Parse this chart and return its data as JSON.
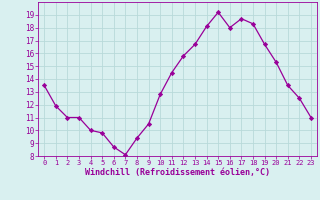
{
  "hours": [
    0,
    1,
    2,
    3,
    4,
    5,
    6,
    7,
    8,
    9,
    10,
    11,
    12,
    13,
    14,
    15,
    16,
    17,
    18,
    19,
    20,
    21,
    22,
    23
  ],
  "values": [
    13.5,
    11.9,
    11.0,
    11.0,
    10.0,
    9.8,
    8.7,
    8.1,
    9.4,
    10.5,
    12.8,
    14.5,
    15.8,
    16.7,
    18.1,
    19.2,
    18.0,
    18.7,
    18.3,
    16.7,
    15.3,
    13.5,
    12.5,
    11.0
  ],
  "line_color": "#990099",
  "marker": "D",
  "marker_size": 2.2,
  "bg_color": "#d9f0f0",
  "grid_color": "#b8dada",
  "xlabel": "Windchill (Refroidissement éolien,°C)",
  "xlabel_color": "#990099",
  "tick_color": "#990099",
  "ylim": [
    8,
    20
  ],
  "xlim": [
    -0.5,
    23.5
  ],
  "yticks": [
    8,
    9,
    10,
    11,
    12,
    13,
    14,
    15,
    16,
    17,
    18,
    19
  ],
  "xticks": [
    0,
    1,
    2,
    3,
    4,
    5,
    6,
    7,
    8,
    9,
    10,
    11,
    12,
    13,
    14,
    15,
    16,
    17,
    18,
    19,
    20,
    21,
    22,
    23
  ]
}
